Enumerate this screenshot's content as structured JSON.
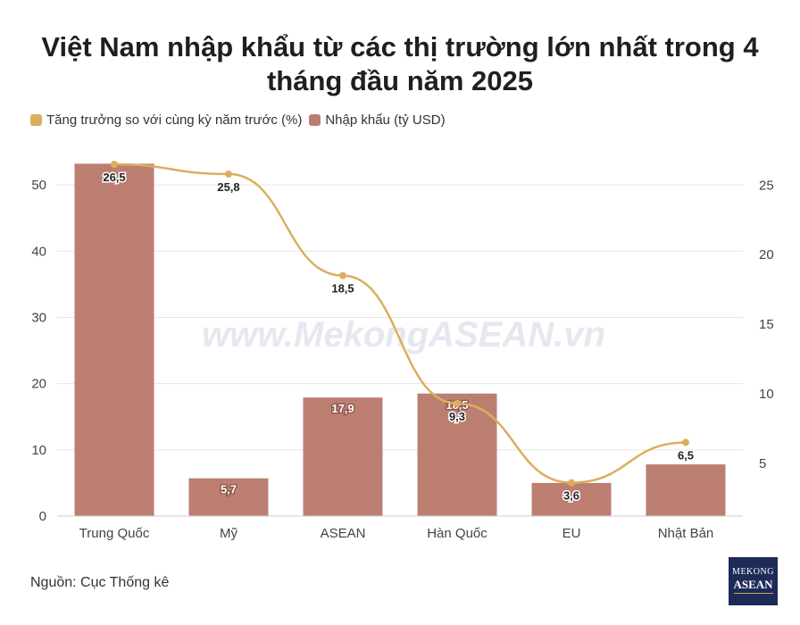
{
  "title": "Việt Nam nhập khẩu từ các thị trường lớn nhất trong 4 tháng đầu năm 2025",
  "legend": {
    "growth_label": "Tăng trưởng so với cùng kỳ năm trước (%)",
    "import_label": "Nhập khẩu (tỷ USD)"
  },
  "watermark": "www.MekongASEAN.vn",
  "source": "Nguồn: Cục Thống kê",
  "logo": {
    "line1": "MEKONG",
    "line2": "ASEAN"
  },
  "colors": {
    "bar": "#bd7e72",
    "line": "#dbae5f",
    "grid": "#e6e6e6",
    "watermark": "#e6e8f0",
    "logo_bg": "#1e2b58"
  },
  "chart_data": {
    "type": "bar",
    "title": "Việt Nam nhập khẩu từ các thị trường lớn nhất trong 4 tháng đầu năm 2025",
    "categories": [
      "Trung Quốc",
      "Mỹ",
      "ASEAN",
      "Hàn Quốc",
      "EU",
      "Nhật Bản"
    ],
    "series": [
      {
        "name": "Nhập khẩu (tỷ USD)",
        "type": "bar",
        "axis": "left",
        "values": [
          53.2,
          5.7,
          17.9,
          18.5,
          5.0,
          7.8
        ],
        "labels": [
          "",
          "5,7",
          "17,9",
          "18,5",
          "",
          ""
        ]
      },
      {
        "name": "Tăng trưởng so với cùng kỳ năm trước (%)",
        "type": "line",
        "axis": "right",
        "values": [
          26.5,
          25.8,
          18.5,
          9.3,
          3.6,
          6.5
        ],
        "labels": [
          "26,5",
          "25,8",
          "18,5",
          "9,3",
          "3,6",
          "6,5"
        ]
      }
    ],
    "y_left": {
      "ticks": [
        "0",
        "10",
        "20",
        "30",
        "40",
        "50"
      ],
      "ylim": [
        0,
        55
      ]
    },
    "y_right": {
      "ticks": [
        "5",
        "10",
        "15",
        "20",
        "25"
      ],
      "ylim": [
        1.2,
        27.4
      ]
    },
    "grid": true,
    "legend_position": "top-left"
  }
}
